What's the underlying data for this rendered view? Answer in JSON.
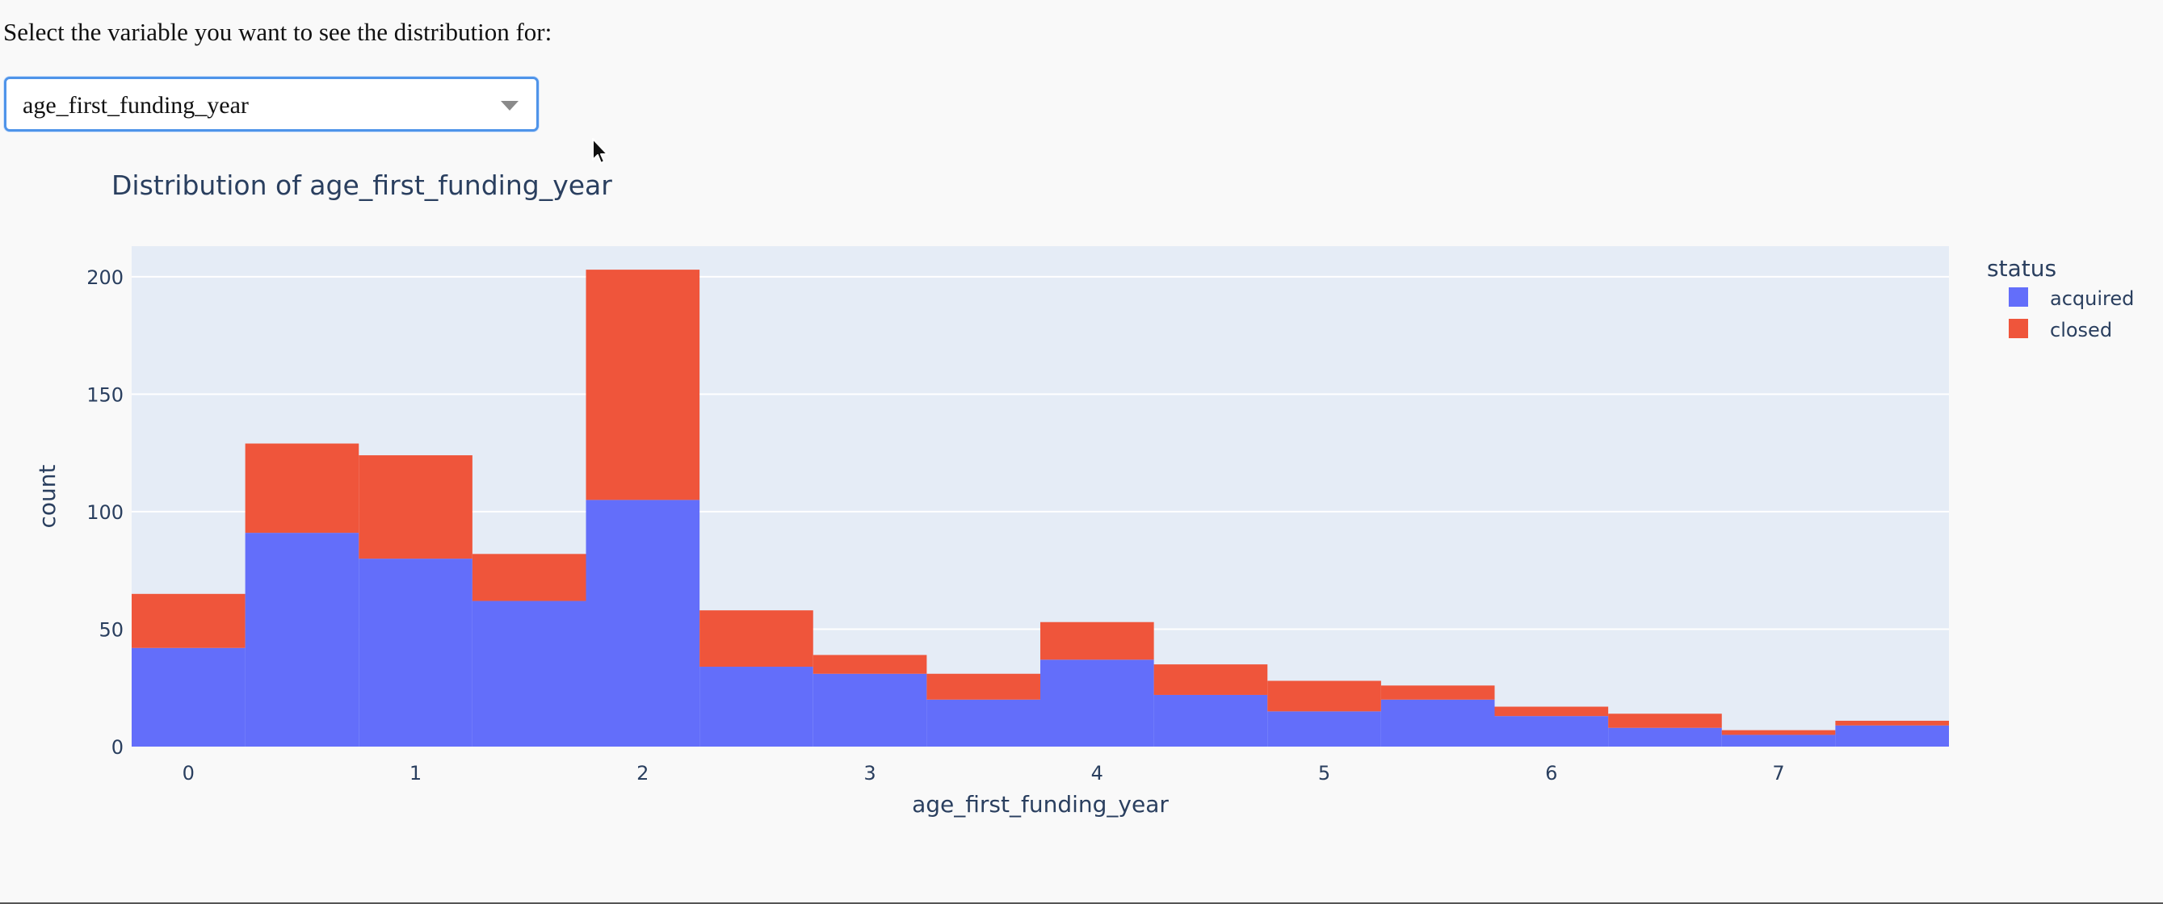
{
  "prompt": {
    "text": "Select the variable you want to see the distribution for:"
  },
  "dropdown": {
    "selected": "age_first_funding_year"
  },
  "colors": {
    "acquired": "#636efa",
    "closed": "#ef553b",
    "plot_background": "#e5ecf6",
    "text": "#2a3f5f"
  },
  "chart_data": {
    "type": "bar",
    "subtype": "stacked-histogram",
    "title": "Distribution of age_first_funding_year",
    "xlabel": "age_first_funding_year",
    "ylabel": "count",
    "x_ticks": [
      0,
      1,
      2,
      3,
      4,
      5,
      6,
      7
    ],
    "y_ticks": [
      0,
      50,
      100,
      150,
      200
    ],
    "xlim": [
      -0.25,
      7.75
    ],
    "ylim": [
      0,
      213
    ],
    "bin_width": 0.5,
    "bin_starts": [
      -0.25,
      0.25,
      0.75,
      1.25,
      1.75,
      2.25,
      2.75,
      3.25,
      3.75,
      4.25,
      4.75,
      5.25,
      5.75,
      6.25,
      6.75,
      7.25
    ],
    "legend": {
      "title": "status",
      "position": "right"
    },
    "grid": true,
    "series": [
      {
        "name": "acquired",
        "values": [
          42,
          91,
          80,
          62,
          105,
          34,
          31,
          20,
          37,
          22,
          15,
          20,
          13,
          8,
          5,
          9
        ]
      },
      {
        "name": "closed",
        "values": [
          23,
          38,
          44,
          20,
          98,
          24,
          8,
          11,
          16,
          13,
          13,
          6,
          4,
          6,
          2,
          2
        ]
      }
    ]
  }
}
